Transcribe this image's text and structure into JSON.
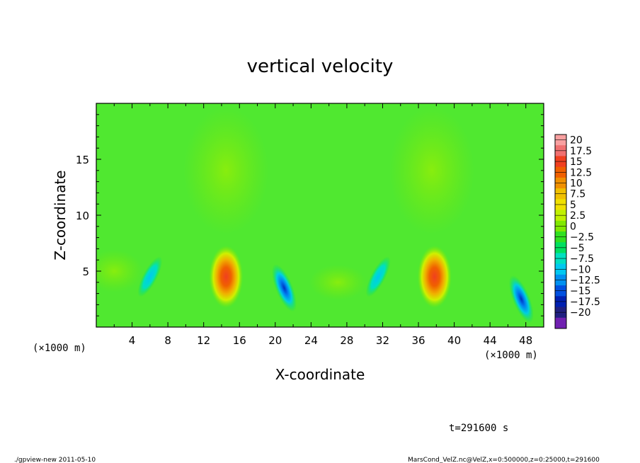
{
  "chart_data": {
    "type": "heatmap",
    "title": "vertical velocity",
    "xlabel": "X-coordinate",
    "ylabel": "Z-coordinate",
    "x_unit_left": "(×1000 m)",
    "x_unit_right": "(×1000 m)",
    "xlim": [
      0,
      50
    ],
    "ylim": [
      0,
      20
    ],
    "x_ticks": [
      4,
      8,
      12,
      16,
      20,
      24,
      28,
      32,
      36,
      40,
      44,
      48
    ],
    "y_ticks": [
      5,
      10,
      15
    ],
    "colorbar": {
      "labels": [
        "20",
        "17.5",
        "15",
        "12.5",
        "10",
        "7.5",
        "5",
        "2.5",
        "0",
        "−2.5",
        "−5",
        "−7.5",
        "−10",
        "−12.5",
        "−15",
        "−17.5",
        "−20"
      ],
      "values": [
        20,
        17.5,
        15,
        12.5,
        10,
        7.5,
        5,
        2.5,
        0,
        -2.5,
        -5,
        -7.5,
        -10,
        -12.5,
        -15,
        -17.5,
        -20
      ],
      "colors": [
        "#f8a0a0",
        "#f07070",
        "#f04020",
        "#f06000",
        "#f09000",
        "#f0c000",
        "#f0e000",
        "#c0f000",
        "#80e800",
        "#30e020",
        "#00e060",
        "#00e0c0",
        "#00c8f0",
        "#0090f0",
        "#0050e0",
        "#0020b0",
        "#202080",
        "#7020b0"
      ]
    },
    "features": [
      {
        "kind": "updraft",
        "x": 14.5,
        "z": 4.5,
        "peak": 15
      },
      {
        "kind": "updraft",
        "x": 37.8,
        "z": 4.5,
        "peak": 15
      },
      {
        "kind": "downdraft",
        "x": 21,
        "z": 3.5,
        "peak": -12
      },
      {
        "kind": "downdraft",
        "x": 47.5,
        "z": 2.5,
        "peak": -13
      },
      {
        "kind": "downdraft",
        "x": 6,
        "z": 4.5,
        "peak": -6
      },
      {
        "kind": "downdraft",
        "x": 31.5,
        "z": 4.5,
        "peak": -6
      }
    ],
    "time_label": "t=291600 s"
  },
  "footer": {
    "left": "./gpview-new   2011-05-10",
    "right": "MarsCond_VelZ.nc@VelZ,x=0:500000,z=0:25000,t=291600"
  }
}
